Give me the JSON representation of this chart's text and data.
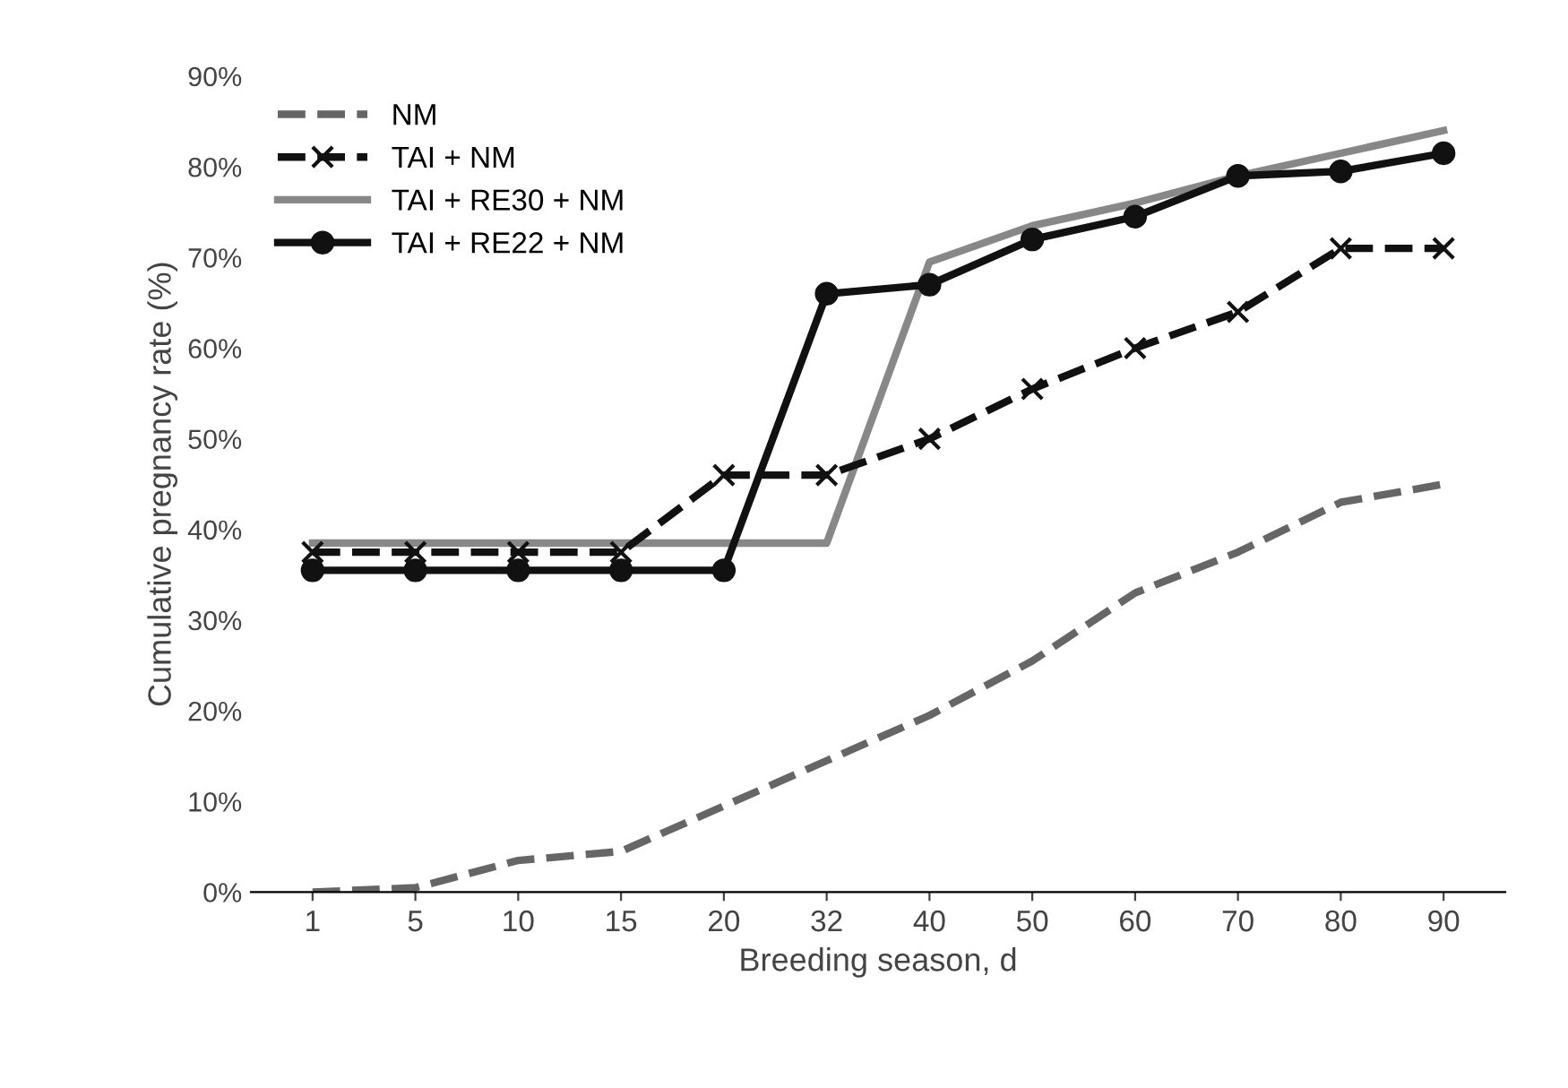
{
  "chart_data": {
    "type": "line",
    "xlabel": "Breeding season, d",
    "ylabel": "Cumulative pregnancy rate (%)",
    "categories": [
      "1",
      "5",
      "10",
      "15",
      "20",
      "32",
      "40",
      "50",
      "60",
      "70",
      "80",
      "90"
    ],
    "ylim": [
      0,
      90
    ],
    "yticks": [
      {
        "value": 0,
        "label": "0%"
      },
      {
        "value": 10,
        "label": "10%"
      },
      {
        "value": 20,
        "label": "20%"
      },
      {
        "value": 30,
        "label": "30%"
      },
      {
        "value": 40,
        "label": "40%"
      },
      {
        "value": 50,
        "label": "50%"
      },
      {
        "value": 60,
        "label": "60%"
      },
      {
        "value": 70,
        "label": "70%"
      },
      {
        "value": 80,
        "label": "80%"
      },
      {
        "value": 90,
        "label": "90%"
      }
    ],
    "grid": false,
    "legend": "top left",
    "series": [
      {
        "name": "NM",
        "color": "#666666",
        "line_style": "dashed",
        "marker": "none",
        "values": [
          0,
          0.5,
          3.5,
          4.5,
          9.5,
          14.5,
          19.5,
          25.5,
          33,
          37.5,
          43,
          45
        ]
      },
      {
        "name": "TAI + NM",
        "color": "#111111",
        "line_style": "dashed",
        "marker": "cross",
        "values": [
          37.5,
          37.5,
          37.5,
          37.5,
          46,
          46,
          50,
          55.5,
          60,
          64,
          71,
          71
        ]
      },
      {
        "name": "TAI + RE30 + NM",
        "color": "#888888",
        "line_style": "solid",
        "marker": "none",
        "values": [
          38.5,
          38.5,
          38.5,
          38.5,
          38.5,
          38.5,
          69.5,
          73.5,
          76,
          79,
          81.5,
          84
        ]
      },
      {
        "name": "TAI + RE22 + NM",
        "color": "#111111",
        "line_style": "solid",
        "marker": "circle",
        "values": [
          35.5,
          35.5,
          35.5,
          35.5,
          35.5,
          66,
          67,
          72,
          74.5,
          79,
          79.5,
          81.5
        ]
      }
    ]
  }
}
